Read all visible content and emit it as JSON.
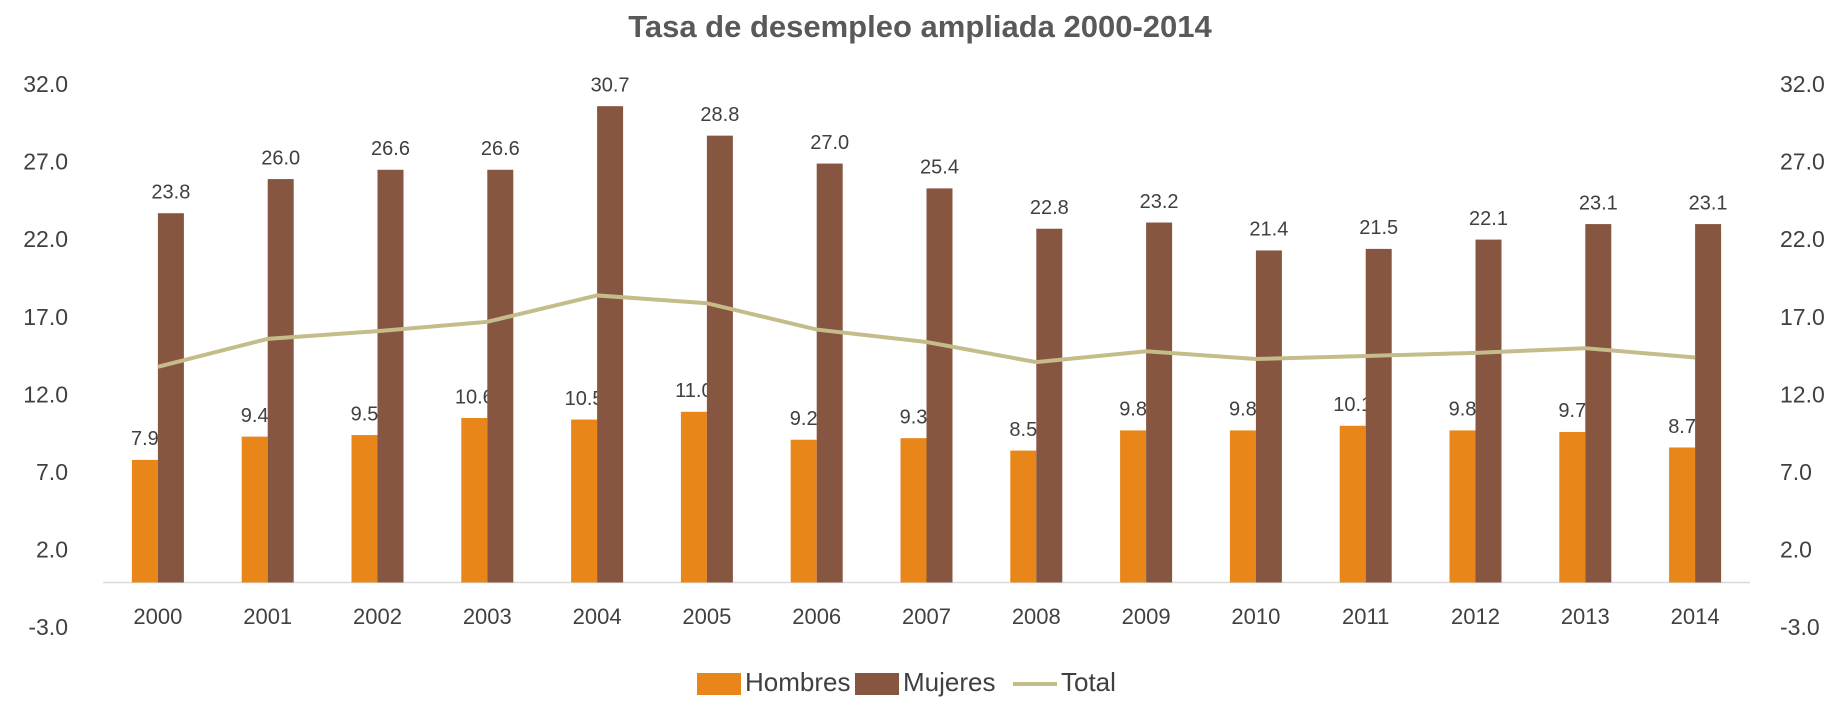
{
  "chart_data": {
    "type": "bar",
    "title": "Tasa de desempleo ampliada 2000-2014",
    "categories": [
      "2000",
      "2001",
      "2002",
      "2003",
      "2004",
      "2005",
      "2006",
      "2007",
      "2008",
      "2009",
      "2010",
      "2011",
      "2012",
      "2013",
      "2014"
    ],
    "series": [
      {
        "name": "Hombres",
        "type": "bar",
        "color": "#e8861a",
        "values": [
          7.9,
          9.4,
          9.5,
          10.6,
          10.5,
          11,
          9.2,
          9.3,
          8.5,
          9.8,
          9.8,
          10.1,
          9.8,
          9.7,
          8.7
        ],
        "value_labels": [
          "7.9",
          "9.4",
          "9.5",
          "10.6",
          "10.5",
          "11.0",
          "9.2",
          "9.3",
          "8.5",
          "9.8",
          "9.8",
          "10.1",
          "9.8",
          "9.7",
          "8.7"
        ]
      },
      {
        "name": "Mujeres",
        "type": "bar",
        "color": "#875641",
        "values": [
          23.8,
          26,
          26.6,
          26.6,
          30.7,
          28.8,
          27,
          25.4,
          22.8,
          23.2,
          21.4,
          21.5,
          22.1,
          23.1,
          23.1
        ],
        "value_labels": [
          "23.8",
          "26.0",
          "26.6",
          "26.6",
          "30.7",
          "28.8",
          "27.0",
          "25.4",
          "22.8",
          "23.2",
          "21.4",
          "21.5",
          "22.1",
          "23.1",
          "23.1"
        ]
      },
      {
        "name": "Total",
        "type": "line",
        "axis": "y2",
        "color": "#c4bd8a",
        "values": [
          13.9,
          15.7,
          16.2,
          16.8,
          18.5,
          18.0,
          16.3,
          15.5,
          14.2,
          14.9,
          14.4,
          14.6,
          14.8,
          15.1,
          14.5
        ]
      }
    ],
    "ylim": [
      -3,
      32
    ],
    "yticks": [
      {
        "value": -3,
        "label": "-3.0"
      },
      {
        "value": 2,
        "label": "2.0"
      },
      {
        "value": 7,
        "label": "7.0"
      },
      {
        "value": 12,
        "label": "12.0"
      },
      {
        "value": 17,
        "label": "17.0"
      },
      {
        "value": 22,
        "label": "22.0"
      },
      {
        "value": 27,
        "label": "27.0"
      },
      {
        "value": 32,
        "label": "32.0"
      }
    ],
    "y2lim": [
      -3,
      32
    ],
    "y2ticks": [
      {
        "value": -3,
        "label": "-3.0"
      },
      {
        "value": 2,
        "label": "2.0"
      },
      {
        "value": 7,
        "label": "7.0"
      },
      {
        "value": 12,
        "label": "12.0"
      },
      {
        "value": 17,
        "label": "17.0"
      },
      {
        "value": 22,
        "label": "22.0"
      },
      {
        "value": 27,
        "label": "27.0"
      },
      {
        "value": 32,
        "label": "32.0"
      }
    ],
    "legend": "bottom"
  }
}
